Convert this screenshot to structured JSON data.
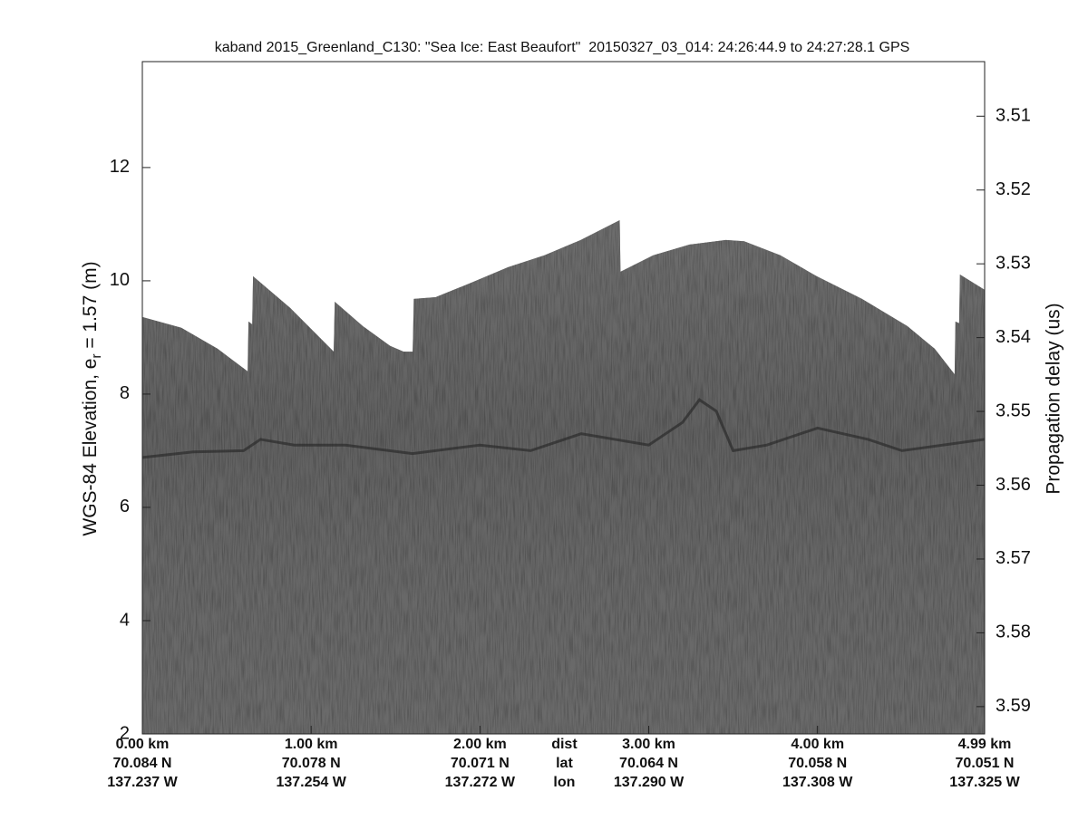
{
  "chart_data": {
    "type": "echogram",
    "title": "kaband 2015_Greenland_C130: \"Sea Ice: East Beaufort\"  20150327_03_014: 24:26:44.9 to 24:27:28.1 GPS",
    "ylabel": {
      "main": "WGS-84 Elevation, e",
      "sub": "r",
      "rest": " = 1.57 (m)"
    },
    "y2label": "Propagation delay (us)",
    "xlim": [
      0,
      4.99
    ],
    "xticks": [
      {
        "value": 0,
        "label": "0.00 km"
      },
      {
        "value": 1,
        "label": "1.00 km"
      },
      {
        "value": 2,
        "label": "2.00 km"
      },
      {
        "value": 3,
        "label": "3.00 km"
      },
      {
        "value": 4,
        "label": "4.00 km"
      },
      {
        "value": 4.99,
        "label": "4.99 km"
      }
    ],
    "lat_labels": [
      "70.084 N",
      "70.078 N",
      "70.071 N",
      "70.064 N",
      "70.058 N",
      "70.051 N"
    ],
    "lon_labels": [
      "137.237 W",
      "137.254 W",
      "137.272 W",
      "137.290 W",
      "137.308 W",
      "137.325 W"
    ],
    "row_names": [
      "dist",
      "lat",
      "lon"
    ],
    "ylim": [
      2,
      13.87
    ],
    "yticks": [
      2,
      4,
      6,
      8,
      10,
      12
    ],
    "y2lim": [
      3.5937,
      3.5026
    ],
    "y2ticks": [
      3.51,
      3.52,
      3.53,
      3.54,
      3.55,
      3.56,
      3.57,
      3.58,
      3.59
    ],
    "series": [
      {
        "color": "#6d6d6d",
        "x": [
          0,
          0.231,
          0.446,
          0.624,
          0.629,
          0.651,
          0.656,
          0.876,
          1.134,
          1.14,
          1.306,
          1.468,
          1.548,
          1.602,
          1.608,
          1.737,
          1.952,
          2.167,
          2.382,
          2.597,
          2.828,
          2.833,
          3.027,
          3.242,
          3.457,
          3.565,
          3.78,
          3.995,
          4.263,
          4.532,
          4.694,
          4.812,
          4.817,
          4.839,
          4.844,
          4.99
        ],
        "values": [
          9.36,
          9.17,
          8.8,
          8.4,
          9.28,
          9.23,
          10.08,
          9.52,
          8.75,
          9.63,
          9.2,
          8.85,
          8.75,
          8.75,
          9.68,
          9.71,
          9.97,
          10.24,
          10.45,
          10.72,
          11.07,
          10.16,
          10.45,
          10.64,
          10.72,
          10.7,
          10.45,
          10.08,
          9.68,
          9.2,
          8.8,
          8.35,
          9.28,
          9.25,
          10.11,
          9.84
        ]
      },
      {
        "color": "#2b2b2b",
        "x": [
          0,
          0.3,
          0.6,
          0.7,
          0.9,
          1.2,
          1.6,
          2.0,
          2.3,
          2.6,
          3.0,
          3.2,
          3.3,
          3.4,
          3.5,
          3.7,
          4.0,
          4.3,
          4.5,
          4.99
        ],
        "values": [
          6.88,
          6.98,
          7.0,
          7.2,
          7.1,
          7.1,
          6.95,
          7.1,
          7.0,
          7.3,
          7.1,
          7.5,
          7.9,
          7.7,
          7.0,
          7.1,
          7.4,
          7.2,
          7.0,
          7.2
        ]
      }
    ]
  }
}
